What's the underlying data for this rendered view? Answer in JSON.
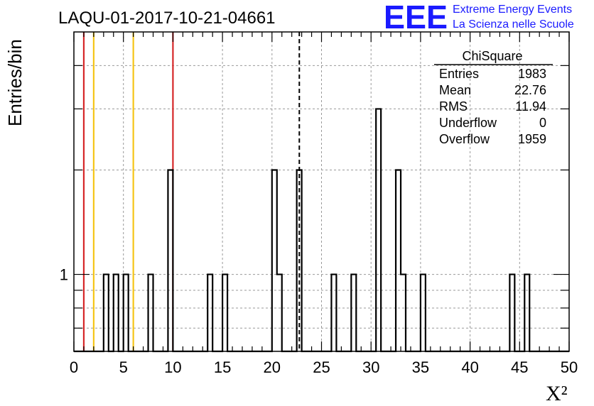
{
  "chart_data": {
    "type": "bar",
    "title": "LAQU-01-2017-10-21-04661",
    "xlabel": "X²",
    "ylabel": "Entries/bin",
    "xlim": [
      0,
      50
    ],
    "ylog": true,
    "ylim": [
      0.6,
      5
    ],
    "grid": true,
    "bin_width": 0.5,
    "x_ticks": [
      0,
      5,
      10,
      15,
      20,
      25,
      30,
      35,
      40,
      45,
      50
    ],
    "y_tick_labels": [
      {
        "value": 1,
        "label": "1"
      }
    ],
    "bins": [
      {
        "x": 3.0,
        "y": 1
      },
      {
        "x": 4.0,
        "y": 1
      },
      {
        "x": 5.0,
        "y": 1
      },
      {
        "x": 7.5,
        "y": 1
      },
      {
        "x": 9.5,
        "y": 2
      },
      {
        "x": 13.5,
        "y": 1
      },
      {
        "x": 15.0,
        "y": 1
      },
      {
        "x": 20.0,
        "y": 2
      },
      {
        "x": 20.5,
        "y": 1
      },
      {
        "x": 22.5,
        "y": 2
      },
      {
        "x": 26.0,
        "y": 1
      },
      {
        "x": 28.0,
        "y": 1
      },
      {
        "x": 30.5,
        "y": 3
      },
      {
        "x": 32.5,
        "y": 2
      },
      {
        "x": 33.0,
        "y": 1
      },
      {
        "x": 35.0,
        "y": 1
      },
      {
        "x": 44.0,
        "y": 1
      },
      {
        "x": 45.5,
        "y": 1
      }
    ],
    "reference_lines": [
      {
        "x": 1,
        "color": "#d62728"
      },
      {
        "x": 2,
        "color": "#f5c518"
      },
      {
        "x": 6,
        "color": "#f5c518"
      },
      {
        "x": 10,
        "color": "#d62728"
      }
    ],
    "mean_line": {
      "x": 22.76,
      "style": "dashed"
    }
  },
  "stats_box": {
    "name": "ChiSquare",
    "rows": [
      {
        "label": "Entries",
        "value": "1983"
      },
      {
        "label": "Mean",
        "value": "22.76"
      },
      {
        "label": "RMS",
        "value": "11.94"
      },
      {
        "label": "Underflow",
        "value": "0"
      },
      {
        "label": "Overflow",
        "value": "1959"
      }
    ]
  },
  "logo": {
    "text": "EEE",
    "line1": "Extreme Energy Events",
    "line2": "La Scienza nelle Scuole"
  }
}
